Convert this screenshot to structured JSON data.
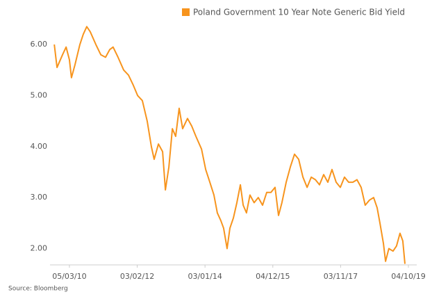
{
  "chart_data": {
    "type": "line",
    "source": "Source: Bloomberg",
    "series": [
      {
        "name": "Poland Government 10 Year Note Generic Bid Yield",
        "color": "#f7941d",
        "x": [
          "2009-09-30",
          "2009-10-28",
          "2009-12-24",
          "2010-01-30",
          "2010-03-05",
          "2010-03-26",
          "2010-05-01",
          "2010-06-21",
          "2010-07-26",
          "2010-08-31",
          "2010-10-06",
          "2010-12-03",
          "2011-01-23",
          "2011-03-13",
          "2011-04-25",
          "2011-05-30",
          "2011-07-20",
          "2011-09-16",
          "2011-11-05",
          "2011-12-25",
          "2012-02-07",
          "2012-03-27",
          "2012-05-16",
          "2012-06-28",
          "2012-07-27",
          "2012-09-09",
          "2012-10-22",
          "2012-11-20",
          "2012-12-26",
          "2013-01-31",
          "2013-03-06",
          "2013-04-11",
          "2013-05-17",
          "2013-07-06",
          "2013-08-19",
          "2013-10-01",
          "2013-11-28",
          "2014-01-10",
          "2014-02-22",
          "2014-04-05",
          "2014-05-10",
          "2014-06-15",
          "2014-07-14",
          "2014-08-19",
          "2014-09-17",
          "2014-10-23",
          "2014-11-28",
          "2015-01-03",
          "2015-02-01",
          "2015-03-07",
          "2015-04-12",
          "2015-05-25",
          "2015-07-07",
          "2015-08-20",
          "2015-10-02",
          "2015-11-14",
          "2015-12-27",
          "2016-02-01",
          "2016-03-07",
          "2016-04-20",
          "2016-06-02",
          "2016-07-15",
          "2016-08-27",
          "2016-10-10",
          "2016-11-22",
          "2017-01-04",
          "2017-02-16",
          "2017-03-30",
          "2017-05-12",
          "2017-06-24",
          "2017-08-06",
          "2017-09-18",
          "2017-10-31",
          "2017-12-13",
          "2018-01-25",
          "2018-03-09",
          "2018-04-21",
          "2018-06-03",
          "2018-07-15",
          "2018-08-28",
          "2018-10-10",
          "2018-11-15",
          "2018-12-14",
          "2019-01-19",
          "2019-02-10",
          "2019-03-16",
          "2019-04-28",
          "2019-06-03",
          "2019-07-09",
          "2019-08-07",
          "2019-08-29"
        ],
        "values": [
          6.0,
          5.55,
          5.8,
          5.95,
          5.7,
          5.35,
          5.6,
          6.0,
          6.2,
          6.35,
          6.25,
          6.0,
          5.8,
          5.75,
          5.9,
          5.95,
          5.75,
          5.5,
          5.4,
          5.2,
          5.0,
          4.9,
          4.5,
          4.0,
          3.75,
          4.05,
          3.9,
          3.15,
          3.6,
          4.35,
          4.2,
          4.75,
          4.35,
          4.55,
          4.4,
          4.2,
          3.95,
          3.55,
          3.3,
          3.05,
          2.7,
          2.55,
          2.4,
          2.0,
          2.4,
          2.6,
          2.9,
          3.25,
          2.85,
          2.7,
          3.05,
          2.9,
          3.0,
          2.85,
          3.1,
          3.1,
          3.2,
          2.65,
          2.9,
          3.3,
          3.6,
          3.85,
          3.75,
          3.4,
          3.2,
          3.4,
          3.35,
          3.25,
          3.45,
          3.3,
          3.55,
          3.3,
          3.2,
          3.4,
          3.3,
          3.3,
          3.35,
          3.2,
          2.85,
          2.95,
          3.0,
          2.8,
          2.5,
          2.1,
          1.75,
          2.0,
          1.95,
          2.05,
          2.3,
          2.15,
          1.7
        ]
      }
    ],
    "xlim": [
      "2009-08-31",
      "2019-12-29"
    ],
    "xticks": [
      {
        "value": "2010-03-05",
        "label": "05/03/10"
      },
      {
        "value": "2012-02-03",
        "label": "03/02/12"
      },
      {
        "value": "2014-01-03",
        "label": "03/01/14"
      },
      {
        "value": "2015-12-04",
        "label": "04/12/15"
      },
      {
        "value": "2017-11-03",
        "label": "03/11/17"
      },
      {
        "value": "2019-10-04",
        "label": "04/10/19"
      }
    ],
    "ylim": [
      1.68,
      6.6
    ],
    "yticks": [
      {
        "value": 2,
        "label": "2.00"
      },
      {
        "value": 3,
        "label": "3.00"
      },
      {
        "value": 4,
        "label": "4.00"
      },
      {
        "value": 5,
        "label": "5.00"
      },
      {
        "value": 6,
        "label": "6.00"
      }
    ],
    "grid": false,
    "legend": "top"
  }
}
